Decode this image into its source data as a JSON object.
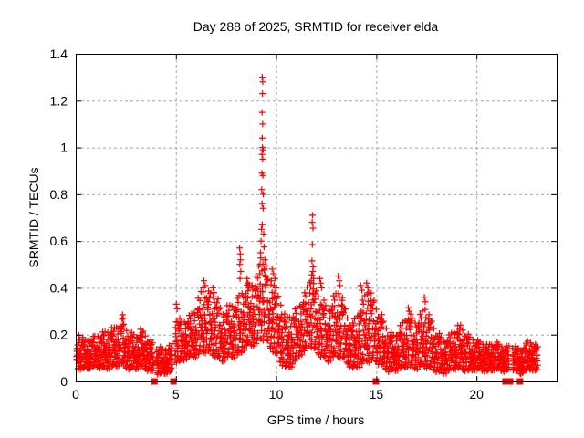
{
  "page": {
    "background": "#ffffff"
  },
  "chart_data": {
    "type": "scatter",
    "title": "Day 288 of 2025, SRMTID for receiver elda",
    "xlabel": "GPS time / hours",
    "ylabel": "SRMTID / TECUs",
    "xlim": [
      0,
      24
    ],
    "ylim": [
      0,
      1.4
    ],
    "grid": true,
    "legend": "none",
    "xticks": [
      {
        "v": 0,
        "label": "0"
      },
      {
        "v": 5,
        "label": "5"
      },
      {
        "v": 10,
        "label": "10"
      },
      {
        "v": 15,
        "label": "15"
      },
      {
        "v": 20,
        "label": "20"
      }
    ],
    "yticks": [
      {
        "v": 0,
        "label": "0"
      },
      {
        "v": 0.2,
        "label": "0.2"
      },
      {
        "v": 0.4,
        "label": "0.4"
      },
      {
        "v": 0.6,
        "label": "0.6"
      },
      {
        "v": 0.8,
        "label": "0.8"
      },
      {
        "v": 1.0,
        "label": "1"
      },
      {
        "v": 1.2,
        "label": "1.2"
      },
      {
        "v": 1.4,
        "label": "1.4"
      }
    ],
    "marker": {
      "shape": "plus",
      "color": "#ff0000",
      "size": 7,
      "stroke_width": 1.25
    },
    "zero_marker": {
      "shape": "filled-square",
      "color": "#ff0000",
      "size": 7
    },
    "zero_marker_x": [
      3.93,
      4.88,
      14.98,
      21.45,
      21.68,
      22.17
    ],
    "grid_color": "#a6a6a6",
    "band": {
      "x_start": 0.04,
      "x_end": 23.08,
      "x_step": 0.03,
      "points_per_step": 3,
      "gaps": [
        [
          3.88,
          4.0
        ],
        [
          4.82,
          4.95
        ],
        [
          21.62,
          21.82
        ]
      ]
    },
    "band_envelope": [
      [
        0.0,
        0.05,
        0.22
      ],
      [
        0.5,
        0.05,
        0.18
      ],
      [
        1.0,
        0.06,
        0.2
      ],
      [
        1.5,
        0.05,
        0.22
      ],
      [
        2.0,
        0.06,
        0.24
      ],
      [
        2.3,
        0.07,
        0.27
      ],
      [
        2.6,
        0.05,
        0.22
      ],
      [
        3.0,
        0.05,
        0.2
      ],
      [
        3.3,
        0.06,
        0.23
      ],
      [
        3.7,
        0.04,
        0.18
      ],
      [
        4.0,
        0.03,
        0.16
      ],
      [
        4.4,
        0.03,
        0.14
      ],
      [
        4.8,
        0.04,
        0.16
      ],
      [
        5.0,
        0.08,
        0.29
      ],
      [
        5.3,
        0.08,
        0.26
      ],
      [
        5.6,
        0.1,
        0.28
      ],
      [
        6.0,
        0.1,
        0.32
      ],
      [
        6.3,
        0.12,
        0.41
      ],
      [
        6.6,
        0.12,
        0.39
      ],
      [
        7.0,
        0.1,
        0.38
      ],
      [
        7.3,
        0.08,
        0.3
      ],
      [
        7.6,
        0.1,
        0.33
      ],
      [
        8.0,
        0.1,
        0.35
      ],
      [
        8.3,
        0.12,
        0.4
      ],
      [
        8.6,
        0.15,
        0.42
      ],
      [
        9.0,
        0.15,
        0.45
      ],
      [
        9.3,
        0.18,
        0.58
      ],
      [
        9.6,
        0.15,
        0.45
      ],
      [
        9.9,
        0.12,
        0.42
      ],
      [
        10.2,
        0.08,
        0.35
      ],
      [
        10.5,
        0.05,
        0.28
      ],
      [
        10.8,
        0.06,
        0.3
      ],
      [
        11.1,
        0.1,
        0.33
      ],
      [
        11.4,
        0.12,
        0.38
      ],
      [
        11.7,
        0.15,
        0.46
      ],
      [
        12.0,
        0.12,
        0.4
      ],
      [
        12.3,
        0.1,
        0.36
      ],
      [
        12.6,
        0.08,
        0.32
      ],
      [
        12.9,
        0.1,
        0.38
      ],
      [
        13.2,
        0.1,
        0.41
      ],
      [
        13.5,
        0.08,
        0.3
      ],
      [
        13.8,
        0.05,
        0.25
      ],
      [
        14.2,
        0.06,
        0.33
      ],
      [
        14.5,
        0.08,
        0.4
      ],
      [
        14.8,
        0.08,
        0.38
      ],
      [
        15.0,
        0.08,
        0.33
      ],
      [
        15.3,
        0.06,
        0.28
      ],
      [
        15.6,
        0.04,
        0.22
      ],
      [
        15.9,
        0.04,
        0.2
      ],
      [
        16.2,
        0.05,
        0.24
      ],
      [
        16.6,
        0.06,
        0.3
      ],
      [
        17.0,
        0.05,
        0.26
      ],
      [
        17.4,
        0.06,
        0.33
      ],
      [
        17.7,
        0.05,
        0.28
      ],
      [
        18.0,
        0.04,
        0.22
      ],
      [
        18.4,
        0.03,
        0.18
      ],
      [
        18.8,
        0.05,
        0.22
      ],
      [
        19.2,
        0.05,
        0.25
      ],
      [
        19.6,
        0.04,
        0.2
      ],
      [
        20.0,
        0.05,
        0.18
      ],
      [
        20.5,
        0.04,
        0.16
      ],
      [
        21.0,
        0.05,
        0.17
      ],
      [
        21.4,
        0.04,
        0.15
      ],
      [
        21.8,
        0.05,
        0.16
      ],
      [
        22.2,
        0.03,
        0.14
      ],
      [
        22.6,
        0.05,
        0.18
      ],
      [
        23.1,
        0.04,
        0.15
      ]
    ],
    "noise": [
      0.62,
      0.15,
      0.83,
      0.35,
      0.52,
      0.91,
      0.08,
      0.45,
      0.71,
      0.27,
      0.58,
      0.97,
      0.18,
      0.66,
      0.38,
      0.8,
      0.05,
      0.49,
      0.88,
      0.3,
      0.73,
      0.12,
      0.55,
      0.94,
      0.22,
      0.68,
      0.41,
      0.85,
      0.02,
      0.51,
      0.76,
      0.33,
      0.63,
      0.09,
      0.9,
      0.46,
      0.19,
      0.79,
      0.57,
      0.25,
      0.99,
      0.42,
      0.7,
      0.14,
      0.86,
      0.36,
      0.6,
      0.48
    ],
    "feature_points": [
      [
        9.31,
        1.3
      ],
      [
        9.33,
        1.28
      ],
      [
        9.32,
        1.23
      ],
      [
        9.3,
        1.15
      ],
      [
        9.33,
        1.1
      ],
      [
        9.31,
        1.04
      ],
      [
        9.32,
        1.0
      ],
      [
        9.35,
        0.99
      ],
      [
        9.3,
        0.97
      ],
      [
        9.33,
        0.95
      ],
      [
        9.29,
        0.89
      ],
      [
        9.34,
        0.88
      ],
      [
        9.28,
        0.82
      ],
      [
        9.36,
        0.8
      ],
      [
        9.3,
        0.76
      ],
      [
        9.35,
        0.74
      ],
      [
        9.31,
        0.67
      ],
      [
        9.27,
        0.65
      ],
      [
        9.38,
        0.63
      ],
      [
        9.25,
        0.6
      ],
      [
        9.4,
        0.575
      ],
      [
        9.22,
        0.55
      ],
      [
        9.44,
        0.52
      ],
      [
        9.2,
        0.5
      ],
      [
        9.42,
        0.48
      ],
      [
        9.18,
        0.46
      ],
      [
        8.18,
        0.57
      ],
      [
        8.21,
        0.545
      ],
      [
        8.23,
        0.52
      ],
      [
        8.19,
        0.5
      ],
      [
        8.24,
        0.47
      ],
      [
        8.2,
        0.44
      ],
      [
        11.82,
        0.71
      ],
      [
        11.8,
        0.68
      ],
      [
        11.84,
        0.655
      ],
      [
        11.81,
        0.585
      ],
      [
        11.79,
        0.515
      ],
      [
        11.85,
        0.49
      ],
      [
        11.83,
        0.47
      ],
      [
        11.78,
        0.455
      ],
      [
        11.87,
        0.44
      ],
      [
        11.76,
        0.43
      ],
      [
        9.8,
        0.48
      ],
      [
        9.87,
        0.46
      ],
      [
        9.94,
        0.44
      ],
      [
        9.76,
        0.43
      ],
      [
        9.9,
        0.41
      ],
      [
        6.4,
        0.43
      ],
      [
        6.46,
        0.41
      ],
      [
        6.36,
        0.4
      ],
      [
        6.85,
        0.4
      ],
      [
        6.9,
        0.38
      ],
      [
        8.55,
        0.44
      ],
      [
        8.6,
        0.42
      ],
      [
        8.64,
        0.4
      ],
      [
        12.18,
        0.44
      ],
      [
        12.23,
        0.42
      ],
      [
        12.27,
        0.4
      ],
      [
        13.1,
        0.45
      ],
      [
        13.15,
        0.43
      ],
      [
        13.18,
        0.41
      ],
      [
        14.22,
        0.41
      ],
      [
        14.28,
        0.39
      ],
      [
        14.52,
        0.42
      ],
      [
        14.58,
        0.4
      ],
      [
        14.62,
        0.38
      ],
      [
        2.33,
        0.285
      ],
      [
        2.37,
        0.27
      ],
      [
        5.02,
        0.33
      ],
      [
        5.06,
        0.31
      ],
      [
        16.6,
        0.315
      ],
      [
        16.64,
        0.3
      ],
      [
        17.4,
        0.36
      ],
      [
        17.44,
        0.34
      ]
    ]
  }
}
